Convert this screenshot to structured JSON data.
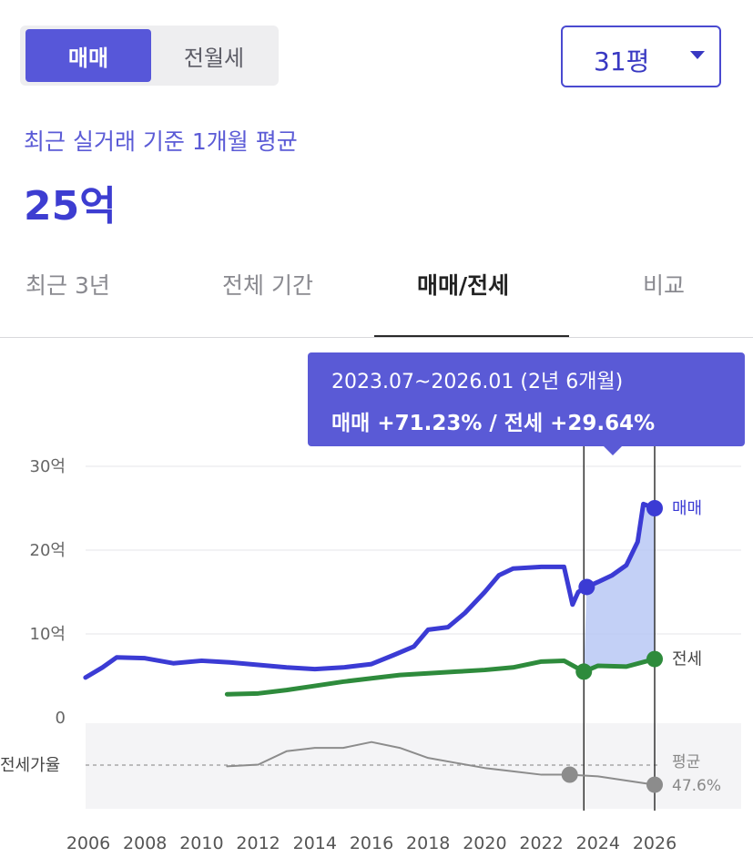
{
  "deal_toggle": {
    "active": "매매",
    "inactive": "전월세"
  },
  "size_select": {
    "value": "31평"
  },
  "summary": {
    "subtitle": "최근 실거래 기준 1개월 평균",
    "price": "25억"
  },
  "period_tabs": [
    {
      "label": "최근 3년"
    },
    {
      "label": "전체 기간"
    },
    {
      "label": "매매/전세"
    },
    {
      "label": "비교"
    }
  ],
  "tooltip": {
    "range": "2023.07~2026.01 (2년 6개월)",
    "change": "매매 +71.23%  /  전세 +29.64%"
  },
  "colors": {
    "sale": "#3b3bd4",
    "jeonse": "#2e8b3c",
    "ratio": "#8c8c8c",
    "accent": "#5a5ad6",
    "highlight": "#b8c8f4"
  },
  "chart_data": {
    "type": "line",
    "units": "억",
    "y_ticks": [
      "30억",
      "20억",
      "10억",
      "0"
    ],
    "ylim": [
      0,
      30
    ],
    "x_ticks": [
      "2006",
      "2008",
      "2010",
      "2012",
      "2014",
      "2016",
      "2018",
      "2020",
      "2022",
      "2024",
      "2026"
    ],
    "highlight_range": [
      "2023.07",
      "2026.01"
    ],
    "series": [
      {
        "name": "매매",
        "points": [
          [
            2005.9,
            4.8
          ],
          [
            2006.5,
            6
          ],
          [
            2007,
            7.2
          ],
          [
            2008,
            7.1
          ],
          [
            2009,
            6.5
          ],
          [
            2010,
            6.8
          ],
          [
            2011,
            6.6
          ],
          [
            2012,
            6.3
          ],
          [
            2013,
            6.0
          ],
          [
            2014,
            5.8
          ],
          [
            2015,
            6.0
          ],
          [
            2016,
            6.4
          ],
          [
            2016.8,
            7.5
          ],
          [
            2017.5,
            8.5
          ],
          [
            2018,
            10.5
          ],
          [
            2018.7,
            10.8
          ],
          [
            2019.3,
            12.5
          ],
          [
            2020,
            15
          ],
          [
            2020.5,
            17
          ],
          [
            2021,
            17.8
          ],
          [
            2022,
            18.0
          ],
          [
            2022.8,
            18.0
          ],
          [
            2023.1,
            13.5
          ],
          [
            2023.3,
            15
          ],
          [
            2023.6,
            15.6
          ],
          [
            2024,
            16.2
          ],
          [
            2024.5,
            17
          ],
          [
            2025,
            18.2
          ],
          [
            2025.4,
            21
          ],
          [
            2025.6,
            25.5
          ],
          [
            2026.0,
            25.0
          ]
        ]
      },
      {
        "name": "전세",
        "points": [
          [
            2010.9,
            2.8
          ],
          [
            2012,
            2.9
          ],
          [
            2013,
            3.3
          ],
          [
            2014,
            3.8
          ],
          [
            2015,
            4.3
          ],
          [
            2016,
            4.7
          ],
          [
            2017,
            5.1
          ],
          [
            2018,
            5.3
          ],
          [
            2019,
            5.5
          ],
          [
            2020,
            5.7
          ],
          [
            2021,
            6.0
          ],
          [
            2022,
            6.7
          ],
          [
            2022.8,
            6.8
          ],
          [
            2023.5,
            5.5
          ],
          [
            2024,
            6.2
          ],
          [
            2025,
            6.1
          ],
          [
            2026.0,
            7.0
          ]
        ]
      },
      {
        "name": "전세가율",
        "points": [
          [
            2010.9,
            -5.8
          ],
          [
            2012,
            -5.6
          ],
          [
            2013,
            -4.0
          ],
          [
            2014,
            -3.6
          ],
          [
            2015,
            -3.6
          ],
          [
            2016,
            -2.9
          ],
          [
            2017,
            -3.6
          ],
          [
            2018,
            -4.8
          ],
          [
            2019,
            -5.4
          ],
          [
            2020,
            -6.0
          ],
          [
            2021,
            -6.4
          ],
          [
            2022,
            -6.8
          ],
          [
            2023,
            -6.8
          ],
          [
            2024,
            -7.0
          ],
          [
            2025,
            -7.5
          ],
          [
            2026.0,
            -8.0
          ]
        ]
      }
    ],
    "end_labels": {
      "sale": "매매",
      "jeonse": "전세",
      "ratio_label": "평균",
      "ratio_value": "47.6%"
    },
    "ratio_axis_label": "전세가율"
  }
}
